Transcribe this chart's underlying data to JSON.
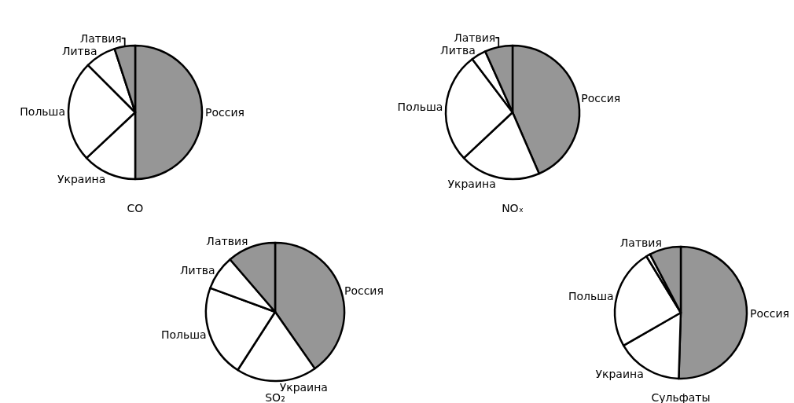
{
  "chart_data": [
    {
      "type": "pie",
      "title": "CO",
      "categories": [
        "Россия",
        "Украина",
        "Польша",
        "Литва",
        "Латвия"
      ],
      "values": [
        50,
        13,
        24.5,
        7.5,
        5
      ],
      "colors": [
        "#969696",
        "#ffffff",
        "#ffffff",
        "#ffffff",
        "#969696"
      ]
    },
    {
      "type": "pie",
      "title": "NOₓ",
      "categories": [
        "Россия",
        "Украина",
        "Польша",
        "Литва",
        "Латвия"
      ],
      "values": [
        43.5,
        19.5,
        26.7,
        3.6,
        6.7
      ],
      "colors": [
        "#969696",
        "#ffffff",
        "#ffffff",
        "#ffffff",
        "#969696"
      ]
    },
    {
      "type": "pie",
      "title": "SO₂",
      "categories": [
        "Россия",
        "Украина",
        "Польша",
        "Литва",
        "Латвия"
      ],
      "values": [
        40.3,
        18.8,
        21.5,
        8.1,
        11.3
      ],
      "colors": [
        "#969696",
        "#ffffff",
        "#ffffff",
        "#ffffff",
        "#969696"
      ]
    },
    {
      "type": "pie",
      "title": "Сульфаты",
      "categories": [
        "Россия",
        "Украина",
        "Польша",
        null,
        "Латвия"
      ],
      "values": [
        50.5,
        16.2,
        24.6,
        1,
        7.7
      ],
      "colors": [
        "#969696",
        "#ffffff",
        "#ffffff",
        "#ffffff",
        "#969696"
      ]
    }
  ]
}
